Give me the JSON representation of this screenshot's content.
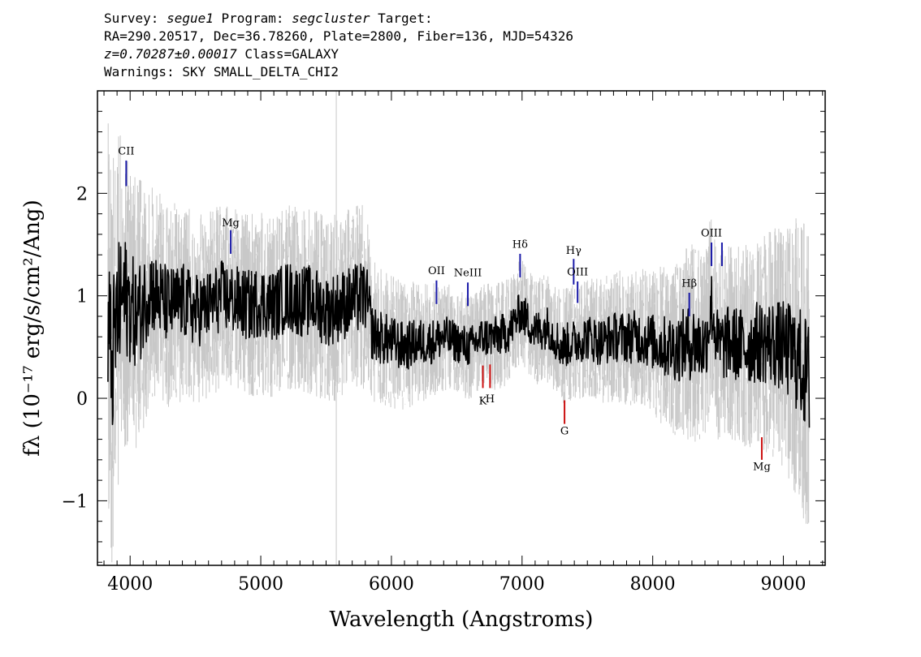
{
  "header": {
    "line1": {
      "survey_label": "Survey: ",
      "survey": "segue1",
      "program_label": " Program: ",
      "program": "segcluster",
      "target_label": " Target:"
    },
    "line2": "RA=290.20517, Dec=36.78260, Plate=2800, Fiber=136, MJD=54326",
    "line3": {
      "redshift": "z=0.70287±0.00017",
      "class": " Class=GALAXY"
    },
    "line4": "Warnings: SKY SMALL_DELTA_CHI2"
  },
  "chart_data": {
    "type": "line",
    "title": "",
    "xlabel": "Wavelength (Angstroms)",
    "ylabel": "fλ (10⁻¹⁷ erg/s/cm²/Ang)",
    "xlim": [
      3750,
      9320
    ],
    "ylim": [
      -1.63,
      3.0
    ],
    "xticks": [
      4000,
      5000,
      6000,
      7000,
      8000,
      9000
    ],
    "yticks": [
      -1,
      0,
      1,
      2
    ],
    "grid": false,
    "sky_line_x": 5578,
    "series": [
      {
        "role": "flux",
        "color": "#000000",
        "x": [
          3830,
          3860,
          3900,
          3950,
          4000,
          4050,
          4100,
          4150,
          4200,
          4300,
          4400,
          4500,
          4600,
          4700,
          4800,
          4900,
          5000,
          5100,
          5200,
          5300,
          5400,
          5500,
          5600,
          5700,
          5800,
          5830,
          5850,
          5900,
          6000,
          6100,
          6200,
          6300,
          6400,
          6500,
          6600,
          6700,
          6800,
          6900,
          6990,
          7100,
          7200,
          7300,
          7400,
          7500,
          7600,
          7700,
          7800,
          7900,
          8000,
          8100,
          8200,
          8300,
          8400,
          8450,
          8500,
          8600,
          8700,
          8800,
          8900,
          9000,
          9100,
          9150,
          9200
        ],
        "y": [
          0.7,
          0.3,
          0.8,
          1.0,
          0.9,
          0.8,
          0.9,
          1.1,
          1.0,
          0.9,
          0.95,
          0.85,
          0.9,
          1.0,
          0.95,
          0.9,
          0.95,
          0.9,
          1.0,
          0.95,
          0.95,
          0.85,
          0.9,
          0.95,
          1.0,
          0.85,
          0.65,
          0.6,
          0.55,
          0.5,
          0.55,
          0.55,
          0.6,
          0.55,
          0.5,
          0.6,
          0.6,
          0.65,
          0.85,
          0.65,
          0.7,
          0.5,
          0.55,
          0.6,
          0.55,
          0.6,
          0.6,
          0.6,
          0.55,
          0.5,
          0.5,
          0.55,
          0.5,
          0.9,
          0.5,
          0.55,
          0.5,
          0.55,
          0.55,
          0.5,
          0.4,
          0.3,
          0.15
        ]
      },
      {
        "role": "error",
        "color": "#c8c8c8",
        "x": [
          3830,
          4000,
          4200,
          4600,
          5000,
          5400,
          5800,
          5850,
          6000,
          6500,
          7000,
          7500,
          8000,
          8300,
          8500,
          8800,
          9000,
          9200
        ],
        "y": [
          1.6,
          1.1,
          0.8,
          0.7,
          0.7,
          0.7,
          0.7,
          0.55,
          0.5,
          0.4,
          0.4,
          0.45,
          0.55,
          0.75,
          0.7,
          0.8,
          0.9,
          1.2
        ]
      }
    ],
    "emission_lines": [
      {
        "label": "CII",
        "x": 3970,
        "y1": 2.07,
        "y2": 2.32,
        "label_y": 2.38
      },
      {
        "label": "Mg",
        "x": 4770,
        "y1": 1.41,
        "y2": 1.64,
        "label_y": 1.68
      },
      {
        "label": "OII",
        "x": 6345,
        "y1": 0.92,
        "y2": 1.15,
        "label_y": 1.21
      },
      {
        "label": "NeIII",
        "x": 6585,
        "y1": 0.9,
        "y2": 1.13,
        "label_y": 1.19
      },
      {
        "label": "Hδ",
        "x": 6985,
        "y1": 1.18,
        "y2": 1.41,
        "label_y": 1.47
      },
      {
        "label": "Hγ",
        "x": 7395,
        "y1": 1.11,
        "y2": 1.36,
        "label_y": 1.41
      },
      {
        "label": "OIII",
        "x": 7425,
        "y1": 0.93,
        "y2": 1.14,
        "label_y": 1.2
      },
      {
        "label": "Hβ",
        "x": 8280,
        "y1": 0.8,
        "y2": 1.03,
        "label_y": 1.09
      },
      {
        "label": "OIII",
        "x": 8450,
        "y1": 1.29,
        "y2": 1.52,
        "label_y": 1.58
      },
      {
        "label": "",
        "x": 8530,
        "y1": 1.29,
        "y2": 1.52,
        "label_y": null
      }
    ],
    "absorption_lines": [
      {
        "label": "K",
        "x": 6700,
        "y1": 0.1,
        "y2": 0.32,
        "label_y": -0.06
      },
      {
        "label": "H",
        "x": 6755,
        "y1": 0.1,
        "y2": 0.33,
        "label_y": -0.04
      },
      {
        "label": "G",
        "x": 7325,
        "y1": -0.25,
        "y2": -0.02,
        "label_y": -0.35
      },
      {
        "label": "Mg",
        "x": 8835,
        "y1": -0.6,
        "y2": -0.38,
        "label_y": -0.7
      }
    ],
    "colors": {
      "emission": "#1a1aa8",
      "absorption": "#cc1111",
      "flux": "#000000",
      "error": "#c8c8c8"
    }
  }
}
